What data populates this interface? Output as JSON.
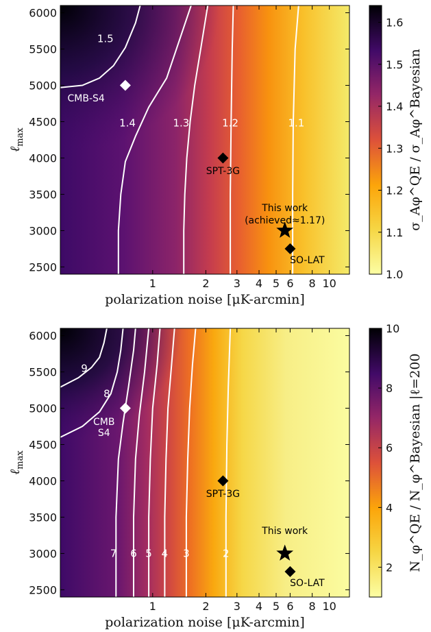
{
  "colors": {
    "colormap": [
      "#fcfea4",
      "#f6d543",
      "#fca50a",
      "#dd513a",
      "#932667",
      "#420a68",
      "#000004"
    ],
    "contour": "#ffffff",
    "marker_dark": "#000000",
    "marker_light": "#ffffff"
  },
  "chart_data": [
    {
      "type": "heatmap",
      "xlabel": "polarization noise  [μK-arcmin]",
      "ylabel": "ℓmax",
      "ylabel_main": "ℓ",
      "ylabel_sub": "max",
      "xscale": "log",
      "xlim": [
        0.3,
        13
      ],
      "ylim": [
        2400,
        6100
      ],
      "xticks": [
        1,
        2,
        3,
        4,
        5,
        6,
        8,
        10
      ],
      "xtick_labels": [
        "1",
        "2",
        "3",
        "4",
        "5",
        "6",
        "8",
        "10"
      ],
      "yticks": [
        2500,
        3000,
        3500,
        4000,
        4500,
        5000,
        5500,
        6000
      ],
      "ytick_labels": [
        "2500",
        "3000",
        "3500",
        "4000",
        "4500",
        "5000",
        "5500",
        "6000"
      ],
      "colorbar": {
        "label": "σ_Aφ^QE / σ_Aφ^Bayesian",
        "range": [
          1.0,
          1.64
        ],
        "ticks": [
          1.0,
          1.1,
          1.2,
          1.3,
          1.4,
          1.5,
          1.6
        ],
        "tick_labels": [
          "1.0",
          "1.1",
          "1.2",
          "1.3",
          "1.4",
          "1.5",
          "1.6"
        ]
      },
      "contours": [
        {
          "level_label": "1.5",
          "label_x": 0.54,
          "label_y": 5640,
          "points": [
            [
              0.3,
              4970
            ],
            [
              0.4,
              5000
            ],
            [
              0.5,
              5100
            ],
            [
              0.6,
              5270
            ],
            [
              0.7,
              5520
            ],
            [
              0.8,
              5860
            ],
            [
              0.85,
              6100
            ]
          ]
        },
        {
          "level_label": "1.4",
          "label_x": 0.72,
          "label_y": 4480,
          "points": [
            [
              0.64,
              2400
            ],
            [
              0.64,
              3000
            ],
            [
              0.66,
              3500
            ],
            [
              0.7,
              3950
            ],
            [
              0.8,
              4300
            ],
            [
              0.95,
              4700
            ],
            [
              1.2,
              5100
            ],
            [
              1.65,
              6100
            ]
          ]
        },
        {
          "level_label": "1.3",
          "label_x": 1.45,
          "label_y": 4480,
          "points": [
            [
              1.5,
              2400
            ],
            [
              1.5,
              3000
            ],
            [
              1.52,
              3500
            ],
            [
              1.56,
              4000
            ],
            [
              1.63,
              4500
            ],
            [
              1.73,
              5000
            ],
            [
              1.87,
              5500
            ],
            [
              2.05,
              6100
            ]
          ]
        },
        {
          "level_label": "1.2",
          "label_x": 2.75,
          "label_y": 4480,
          "points": [
            [
              2.75,
              2400
            ],
            [
              2.75,
              3500
            ],
            [
              2.78,
              4500
            ],
            [
              2.82,
              5500
            ],
            [
              2.86,
              6100
            ]
          ]
        },
        {
          "level_label": "1.1",
          "label_x": 6.5,
          "label_y": 4480,
          "points": [
            [
              6.2,
              2400
            ],
            [
              6.2,
              3500
            ],
            [
              6.25,
              4500
            ],
            [
              6.4,
              5500
            ],
            [
              6.7,
              6100
            ]
          ]
        }
      ],
      "markers": [
        {
          "label": "CMB-S4",
          "shape": "diamond",
          "color": "white",
          "x": 0.7,
          "y": 5000,
          "label_x": 0.42,
          "label_y": 4780
        },
        {
          "label": "SPT-3G",
          "shape": "diamond",
          "color": "black",
          "x": 2.5,
          "y": 4000,
          "label_x": 2.5,
          "label_y": 3780
        },
        {
          "label": "SO-LAT",
          "shape": "diamond",
          "color": "black",
          "x": 6.0,
          "y": 2750,
          "label_x": 7.5,
          "label_y": 2550
        },
        {
          "label": "This work",
          "shape": "star",
          "color": "black",
          "x": 5.6,
          "y": 3000,
          "label_x": 5.6,
          "label_y": 3270
        }
      ],
      "annotations": [
        "(achieved≈1.17)"
      ]
    },
    {
      "type": "heatmap",
      "xlabel": "polarization noise  [μK-arcmin]",
      "ylabel": "ℓmax",
      "ylabel_main": "ℓ",
      "ylabel_sub": "max",
      "xscale": "log",
      "xlim": [
        0.3,
        13
      ],
      "ylim": [
        2400,
        6100
      ],
      "xticks": [
        1,
        2,
        3,
        4,
        5,
        6,
        8,
        10
      ],
      "xtick_labels": [
        "1",
        "2",
        "3",
        "4",
        "5",
        "6",
        "8",
        "10"
      ],
      "yticks": [
        2500,
        3000,
        3500,
        4000,
        4500,
        5000,
        5500,
        6000
      ],
      "ytick_labels": [
        "2500",
        "3000",
        "3500",
        "4000",
        "4500",
        "5000",
        "5500",
        "6000"
      ],
      "colorbar": {
        "label": "N_φ^QE / N_φ^Bayesian |ℓ=200",
        "range": [
          1.0,
          10.0
        ],
        "ticks": [
          2,
          4,
          6,
          8,
          10
        ],
        "tick_labels": [
          "2",
          "4",
          "6",
          "8",
          "10"
        ]
      },
      "contours": [
        {
          "level_label": "9",
          "label_x": 0.41,
          "label_y": 5550,
          "points": [
            [
              0.3,
              5290
            ],
            [
              0.38,
              5420
            ],
            [
              0.45,
              5560
            ],
            [
              0.5,
              5700
            ],
            [
              0.53,
              5900
            ],
            [
              0.55,
              6100
            ]
          ]
        },
        {
          "level_label": "8",
          "label_x": 0.55,
          "label_y": 5200,
          "points": [
            [
              0.3,
              4600
            ],
            [
              0.4,
              4750
            ],
            [
              0.5,
              4950
            ],
            [
              0.58,
              5200
            ],
            [
              0.63,
              5500
            ],
            [
              0.66,
              5800
            ],
            [
              0.68,
              6100
            ]
          ]
        },
        {
          "level_label": "7",
          "label_x": 0.6,
          "label_y": 3000,
          "points": [
            [
              0.62,
              2400
            ],
            [
              0.62,
              3500
            ],
            [
              0.64,
              4300
            ],
            [
              0.68,
              4800
            ],
            [
              0.73,
              5300
            ],
            [
              0.78,
              5800
            ],
            [
              0.8,
              6100
            ]
          ]
        },
        {
          "level_label": "6",
          "label_x": 0.78,
          "label_y": 3000,
          "points": [
            [
              0.78,
              2400
            ],
            [
              0.78,
              3500
            ],
            [
              0.8,
              4300
            ],
            [
              0.84,
              4900
            ],
            [
              0.9,
              5500
            ],
            [
              0.95,
              6100
            ]
          ]
        },
        {
          "level_label": "5",
          "label_x": 0.95,
          "label_y": 3000,
          "points": [
            [
              0.95,
              2400
            ],
            [
              0.95,
              3500
            ],
            [
              0.97,
              4300
            ],
            [
              1.0,
              5000
            ],
            [
              1.06,
              5600
            ],
            [
              1.1,
              6100
            ]
          ]
        },
        {
          "level_label": "4",
          "label_x": 1.17,
          "label_y": 3000,
          "points": [
            [
              1.17,
              2400
            ],
            [
              1.17,
              3500
            ],
            [
              1.19,
              4300
            ],
            [
              1.22,
              5000
            ],
            [
              1.28,
              5600
            ],
            [
              1.33,
              6100
            ]
          ]
        },
        {
          "level_label": "3",
          "label_x": 1.55,
          "label_y": 3000,
          "points": [
            [
              1.55,
              2400
            ],
            [
              1.55,
              3500
            ],
            [
              1.58,
              4300
            ],
            [
              1.62,
              5000
            ],
            [
              1.68,
              5600
            ],
            [
              1.75,
              6100
            ]
          ]
        },
        {
          "level_label": "2",
          "label_x": 2.6,
          "label_y": 3000,
          "points": [
            [
              2.6,
              2400
            ],
            [
              2.6,
              3500
            ],
            [
              2.63,
              4500
            ],
            [
              2.68,
              5300
            ],
            [
              2.75,
              6100
            ]
          ]
        }
      ],
      "markers": [
        {
          "label": "CMB\nS4",
          "lines": [
            "CMB",
            "S4"
          ],
          "shape": "diamond",
          "color": "white",
          "x": 0.7,
          "y": 5000,
          "label_x": 0.53,
          "label_y": 4770
        },
        {
          "label": "SPT-3G",
          "shape": "diamond",
          "color": "black",
          "x": 2.5,
          "y": 4000,
          "label_x": 2.5,
          "label_y": 3780
        },
        {
          "label": "SO-LAT",
          "shape": "diamond",
          "color": "black",
          "x": 6.0,
          "y": 2750,
          "label_x": 7.5,
          "label_y": 2550
        },
        {
          "label": "This work",
          "shape": "star",
          "color": "black",
          "x": 5.6,
          "y": 3000,
          "label_x": 5.6,
          "label_y": 3270
        }
      ],
      "annotations": []
    }
  ]
}
